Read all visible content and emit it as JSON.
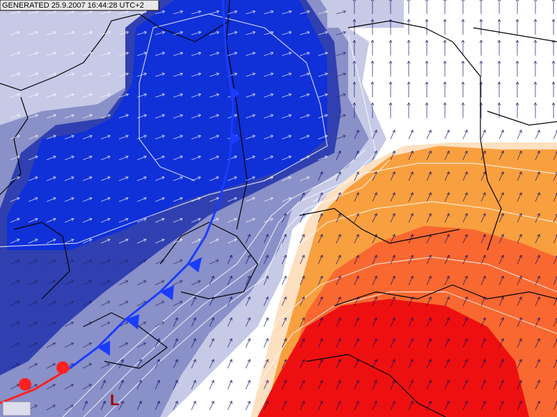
{
  "header": {
    "generated": "GENERATED 25.9.2007 16:44:28 UTC+2"
  },
  "labels": {
    "low": "L"
  }
}
